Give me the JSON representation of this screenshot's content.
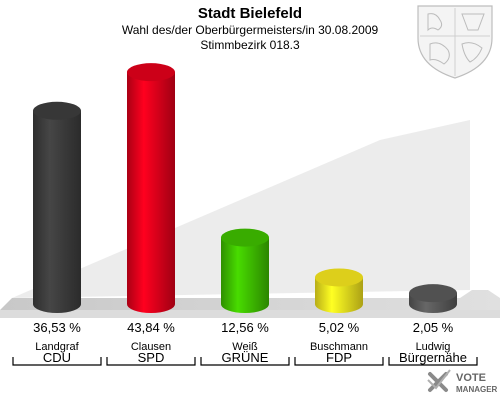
{
  "chart_data": {
    "type": "bar",
    "title": "Stadt Bielefeld",
    "subtitle": "Wahl des/der Oberbürgermeisters/in 30.08.2009",
    "subtitle2": "Stimmbezirk 018.3",
    "categories": [
      "CDU",
      "SPD",
      "GRÜNE",
      "FDP",
      "Bürgernähe"
    ],
    "candidates": [
      "Landgraf",
      "Clausen",
      "Weiß",
      "Buschmann",
      "Ludwig"
    ],
    "values": [
      36.53,
      43.84,
      12.56,
      5.02,
      2.05
    ],
    "value_labels": [
      "36,53 %",
      "43,84 %",
      "12,56 %",
      "5,02 %",
      "2,05 %"
    ],
    "colors": [
      "#3d3d3d",
      "#e3001b",
      "#3fbf00",
      "#f5e61e",
      "#5a5a5a"
    ],
    "ylim": [
      0,
      45
    ],
    "grid": false,
    "legend": "none"
  },
  "logo": {
    "line1": "VOTE",
    "line2": "MANAGER"
  },
  "crest_icon": "coat-of-arms-icon"
}
